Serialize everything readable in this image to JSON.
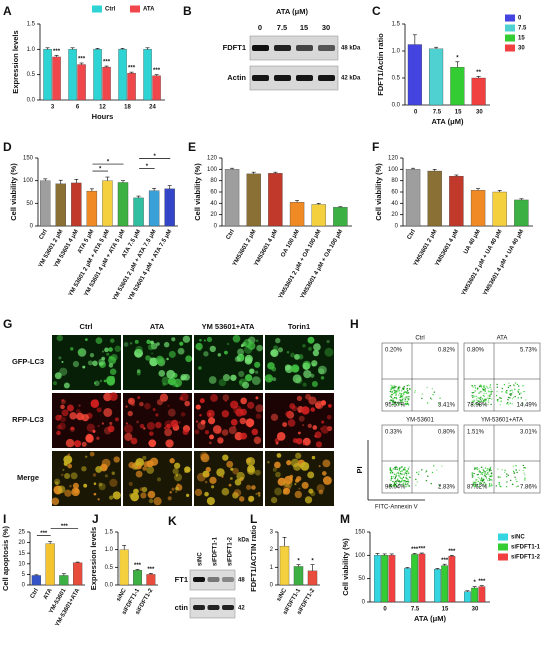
{
  "chart_data": [
    {
      "panel": "A",
      "type": "bar",
      "ylabel": "Expression levels",
      "xlabel": "Hours",
      "categories": [
        "3",
        "6",
        "12",
        "18",
        "24"
      ],
      "series": [
        {
          "name": "Ctrl",
          "color": "#2ed3d3",
          "values": [
            1.0,
            1.0,
            1.0,
            1.0,
            1.0
          ],
          "errors": [
            0.03,
            0.03,
            0.02,
            0.02,
            0.03
          ]
        },
        {
          "name": "ATA",
          "color": "#f0474c",
          "values": [
            0.85,
            0.7,
            0.65,
            0.53,
            0.48
          ],
          "errors": [
            0.03,
            0.03,
            0.02,
            0.02,
            0.02
          ],
          "annotations": [
            "***",
            "***",
            "***",
            "***",
            "***"
          ]
        }
      ],
      "ylim": [
        0,
        1.5
      ],
      "yticks": [
        {
          "value": 0,
          "label": "0.0"
        },
        0.5,
        {
          "value": 1,
          "label": "1.0"
        },
        1.5
      ],
      "legend": "top"
    },
    {
      "panel": "C",
      "type": "bar",
      "ylabel": "FDFT1/Actin ratio",
      "xlabel": "ATA (μM)",
      "categories": [
        "0",
        "7.5",
        "15",
        "30"
      ],
      "values": [
        1.12,
        1.04,
        0.7,
        0.5
      ],
      "errors": [
        0.18,
        0.03,
        0.1,
        0.03
      ],
      "colors": [
        "#4444e0",
        "#4fd1d1",
        "#33cc33",
        "#f04040"
      ],
      "annotations": [
        null,
        null,
        "*",
        "**"
      ],
      "legend_labels": [
        "0",
        "7.5",
        "15",
        "30"
      ],
      "legend": "right",
      "ylim": [
        0,
        1.5
      ],
      "yticks": [
        {
          "value": 0,
          "label": "0.0"
        },
        0.5,
        {
          "value": 1,
          "label": "1.0"
        },
        1.5
      ]
    },
    {
      "panel": "D",
      "type": "bar",
      "ylabel": "Cell viability (%)",
      "rotate_labels": true,
      "categories": [
        "Ctrl",
        "YM 53601 2 μM",
        "YM 53601 4 μM",
        "ATA 5 μM",
        "YM 53601 2 μM + ATA 5 μM",
        "YM 53601 4 μM + ATA 5 μM",
        "ATA 7.5 μM",
        "YM 53601 2 μM + ATA 7.5 μM",
        "YM 53601 4 μM + ATA 7.5 μM"
      ],
      "values": [
        100,
        93,
        95,
        77,
        100,
        96,
        62,
        78,
        82
      ],
      "errors": [
        4,
        8,
        8,
        5,
        8,
        4,
        4,
        5,
        7
      ],
      "colors": [
        "#9e9e9e",
        "#8b7035",
        "#c0392b",
        "#f08a24",
        "#f4d03f",
        "#3cb043",
        "#2fbfa0",
        "#3aa0d8",
        "#3346c8"
      ],
      "brackets": [
        {
          "text": "*",
          "from": "ATA 5 μM",
          "to": "YM 53601 2 μM + ATA 5 μM"
        },
        {
          "text": "*",
          "from": "ATA 5 μM",
          "to": "YM 53601 4 μM + ATA 5 μM"
        },
        {
          "text": "*",
          "from": "ATA 7.5 μM",
          "to": "YM 53601 2 μM + ATA 7.5 μM"
        },
        {
          "text": "*",
          "from": "ATA 7.5 μM",
          "to": "YM 53601 4 μM + ATA 7.5 μM"
        }
      ],
      "ylim": [
        0,
        150
      ],
      "yticks": [
        0,
        50,
        100,
        150
      ]
    },
    {
      "panel": "E",
      "type": "bar",
      "ylabel": "Cell viability (%)",
      "rotate_labels": true,
      "categories": [
        "Ctrl",
        "YM53601 2 μM",
        "YM53601 4 μM",
        "OA 100 μM",
        "YM53601 2 μM + OA 100 μM",
        "YM53601 4 μM + OA 100 μM"
      ],
      "values": [
        100,
        92,
        93,
        42,
        38,
        33
      ],
      "errors": [
        2,
        3,
        2,
        3,
        2,
        1
      ],
      "colors": [
        "#9e9e9e",
        "#8b7035",
        "#c0392b",
        "#f08a24",
        "#f4d03f",
        "#3cb043"
      ],
      "ylim": [
        0,
        120
      ],
      "yticks": [
        0,
        20,
        40,
        60,
        80,
        100,
        120
      ]
    },
    {
      "panel": "F",
      "type": "bar",
      "ylabel": "Cell viability (%)",
      "rotate_labels": true,
      "categories": [
        "Ctrl",
        "YM53601 2 μM",
        "YM53601 4 μM",
        "UA 40 μM",
        "YM53601 2 μM + UA 40 μM",
        "YM53601 4 μM + UA 40 μM"
      ],
      "values": [
        100,
        97,
        88,
        63,
        60,
        46
      ],
      "errors": [
        2,
        3,
        2,
        3,
        3,
        2
      ],
      "colors": [
        "#9e9e9e",
        "#8b7035",
        "#c0392b",
        "#f08a24",
        "#f4d03f",
        "#3cb043"
      ],
      "ylim": [
        0,
        120
      ],
      "yticks": [
        0,
        20,
        40,
        60,
        80,
        100,
        120
      ]
    },
    {
      "panel": "I",
      "type": "bar",
      "ylabel": "Cell apoptosis (%)",
      "rotate_labels": true,
      "categories": [
        "Ctrl",
        "ATA",
        "YM-53601",
        "YM-53601+ATA"
      ],
      "values": [
        4.5,
        19.5,
        4.5,
        10.5
      ],
      "errors": [
        0.3,
        1,
        0.8,
        0.3
      ],
      "colors": [
        "#3455c8",
        "#f4c430",
        "#3cb043",
        "#e74c3c"
      ],
      "brackets": [
        {
          "text": "***",
          "from": "Ctrl",
          "to": "ATA"
        },
        {
          "text": "***",
          "from": "ATA",
          "to": "YM-53601+ATA"
        }
      ],
      "ylim": [
        0,
        25
      ],
      "yticks": [
        0,
        5,
        10,
        15,
        20,
        25
      ]
    },
    {
      "panel": "J",
      "type": "bar",
      "ylabel": "Expression levels",
      "rotate_labels": true,
      "categories": [
        "siNC",
        "siFDFT1-1",
        "siFDFT1-2"
      ],
      "values": [
        1.0,
        0.42,
        0.3
      ],
      "errors": [
        0.12,
        0.02,
        0.03
      ],
      "colors": [
        "#f4d03f",
        "#3cb043",
        "#e74c3c"
      ],
      "annotations": [
        null,
        "***",
        "***"
      ],
      "ylim": [
        0,
        1.5
      ],
      "yticks": [
        {
          "value": 0,
          "label": "0.0"
        },
        0.5,
        {
          "value": 1,
          "label": "1.0"
        },
        1.5
      ]
    },
    {
      "panel": "L",
      "type": "bar",
      "ylabel": "FDFT1/ACTIN ratio",
      "rotate_labels": true,
      "categories": [
        "siNC",
        "siFDFT1-1",
        "siFDFT1-2"
      ],
      "values": [
        2.2,
        1.05,
        0.8
      ],
      "errors": [
        0.5,
        0.1,
        0.35
      ],
      "colors": [
        "#f4d03f",
        "#3cb043",
        "#e74c3c"
      ],
      "annotations": [
        null,
        "*",
        "*"
      ],
      "ylim": [
        0,
        3
      ],
      "yticks": [
        0,
        1,
        2,
        3
      ]
    },
    {
      "panel": "M",
      "type": "bar",
      "ylabel": "Cell viability (%)",
      "xlabel": "ATA (μM)",
      "categories": [
        "0",
        "7.5",
        "15",
        "30"
      ],
      "series": [
        {
          "name": "siNC",
          "color": "#33d6e0",
          "values": [
            100,
            72,
            70,
            22
          ],
          "errors": [
            4,
            2,
            2,
            2
          ]
        },
        {
          "name": "siFDFT1-1",
          "color": "#33cc33",
          "values": [
            100,
            102,
            78,
            30
          ],
          "errors": [
            3,
            2,
            3,
            3
          ],
          "annotations": [
            null,
            "***",
            "***",
            "*"
          ]
        },
        {
          "name": "siFDFT1-2",
          "color": "#f04040",
          "values": [
            100,
            103,
            98,
            33
          ],
          "errors": [
            3,
            2,
            2,
            2
          ],
          "annotations": [
            null,
            "***",
            "***",
            "***"
          ]
        }
      ],
      "ylim": [
        0,
        150
      ],
      "yticks": [
        0,
        50,
        100,
        150
      ],
      "legend": "right"
    }
  ],
  "blot_B": {
    "panel": "B",
    "title": "ATA (μM)",
    "lanes": [
      "0",
      "7.5",
      "15",
      "30"
    ],
    "rows": [
      {
        "name": "FDFT1",
        "size": "48 kDa"
      },
      {
        "name": "Actin",
        "size": "42 kDa"
      }
    ]
  },
  "image_G": {
    "panel": "G",
    "columns": [
      "Ctrl",
      "ATA",
      "YM 53601+ATA",
      "Torin1"
    ],
    "rows": [
      "GFP-LC3",
      "RFP-LC3",
      "Merge"
    ]
  },
  "flow_H": {
    "panel": "H",
    "ylabel": "PI",
    "xlabel": "FITC-Annexin V",
    "plots": [
      {
        "title": "Ctrl",
        "quadrants": [
          "0.20%",
          "0.82%",
          "95.57%",
          "3.41%"
        ]
      },
      {
        "title": "ATA",
        "quadrants": [
          "0.80%",
          "5.73%",
          "78.98%",
          "14.49%"
        ]
      },
      {
        "title": "YM-53601",
        "quadrants": [
          "0.33%",
          "0.80%",
          "96.04%",
          "2.83%"
        ]
      },
      {
        "title": "YM-53601+ATA",
        "quadrants": [
          "1.51%",
          "3.01%",
          "87.62%",
          "7.86%"
        ]
      }
    ]
  },
  "blot_K": {
    "panel": "K",
    "unit": "kDa",
    "lanes": [
      "siNC",
      "siFDFT1-1",
      "siFDFT1-2"
    ],
    "rows": [
      {
        "name": "FT1",
        "size": "48"
      },
      {
        "name": "ctin",
        "size": "42"
      }
    ]
  }
}
